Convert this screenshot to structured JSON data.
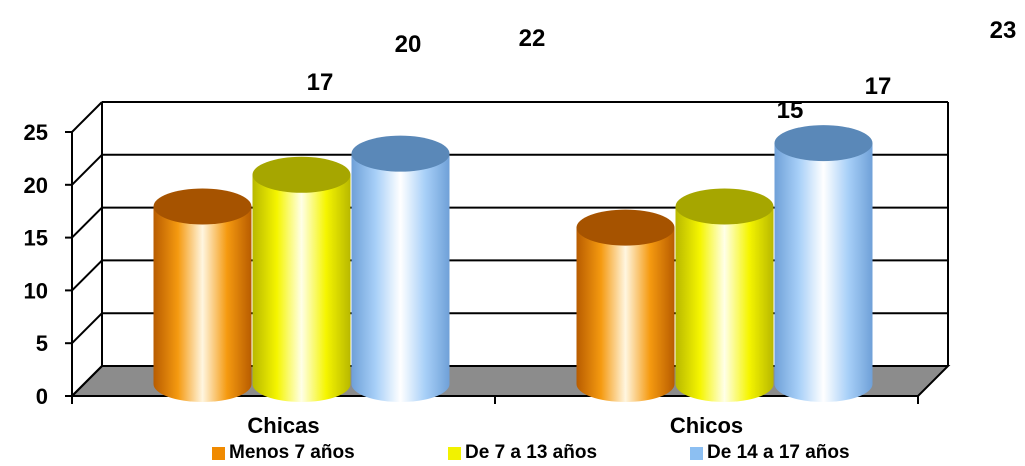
{
  "chart_data": {
    "type": "bar",
    "categories": [
      "Chicas",
      "Chicos"
    ],
    "series": [
      {
        "name": "Menos 7 años",
        "values": [
          17,
          15
        ],
        "color": "#f08a00"
      },
      {
        "name": "De 7 a 13 años",
        "values": [
          20,
          17
        ],
        "color": "#f2f200"
      },
      {
        "name": "De 14 a 17 años",
        "values": [
          22,
          23
        ],
        "color": "#8cbff2"
      }
    ],
    "data_labels": [
      [
        "17",
        "15"
      ],
      [
        "20",
        "17"
      ],
      [
        "22",
        "23"
      ]
    ],
    "yticks": [
      "0",
      "5",
      "10",
      "15",
      "20",
      "25"
    ],
    "ylim": [
      0,
      25
    ],
    "grid": true,
    "legend_position": "bottom",
    "title": "",
    "xlabel": "",
    "ylabel": ""
  }
}
